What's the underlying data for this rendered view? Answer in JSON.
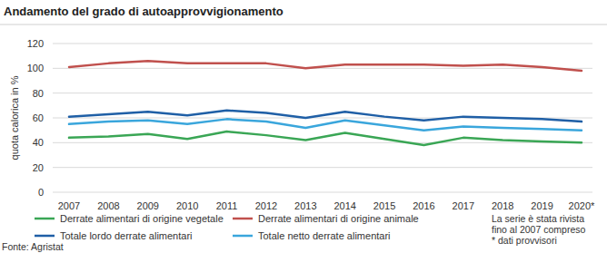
{
  "chart_data": {
    "type": "line",
    "title": "Andamento del grado di autoapprovvigionamento",
    "ylabel": "quota calorica in %",
    "categories": [
      "2007",
      "2008",
      "2009",
      "2010",
      "2011",
      "2012",
      "2013",
      "2014",
      "2015",
      "2016",
      "2017",
      "2018",
      "2019",
      "2020*"
    ],
    "series": [
      {
        "name": "Derrate alimentari di origine vegetale",
        "color": "#3aa655",
        "values": [
          44,
          45,
          47,
          43,
          49,
          46,
          42,
          48,
          43,
          38,
          44,
          42,
          41,
          40
        ]
      },
      {
        "name": "Derrate alimentari di origine animale",
        "color": "#c0504d",
        "values": [
          101,
          104,
          106,
          104,
          104,
          104,
          100,
          103,
          103,
          103,
          102,
          103,
          101,
          98
        ]
      },
      {
        "name": "Totale lordo derrate alimentari",
        "color": "#1f5fa6",
        "values": [
          61,
          63,
          65,
          62,
          66,
          64,
          60,
          65,
          61,
          58,
          61,
          60,
          59,
          57
        ]
      },
      {
        "name": "Totale netto derrate alimentari",
        "color": "#3aa6dc",
        "values": [
          55,
          57,
          58,
          55,
          59,
          57,
          52,
          58,
          54,
          50,
          53,
          52,
          51,
          50
        ]
      }
    ],
    "ylim": [
      0,
      120
    ],
    "yticks": [
      0,
      20,
      40,
      60,
      80,
      100,
      120
    ],
    "grid": true,
    "annotations": [
      "La serie è stata rivista",
      "fino al 2007 compreso",
      "* dati provvisori"
    ],
    "source": "Fonte: Agristat"
  }
}
